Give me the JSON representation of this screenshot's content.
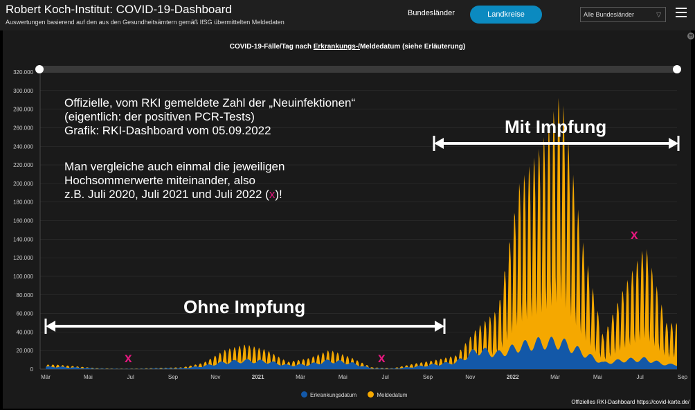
{
  "header": {
    "title": "Robert Koch-Institut: COVID-19-Dashboard",
    "subtitle": "Auswertungen basierend auf den aus den Gesundheitsämtern gemäß IfSG übermittelten Meldedaten",
    "tab_states": "Bundesländer",
    "tab_districts": "Landkreise",
    "region_select": "Alle Bundesländer"
  },
  "chart_title": {
    "prefix": "COVID-19-Fälle/Tag nach ",
    "link": "Erkrankungs-/",
    "suffix": "Meldedatum (siehe Erläuterung)"
  },
  "annotations": {
    "line1": "Offizielle, vom RKI gemeldete Zahl der „Neuinfektionen“",
    "line2": "(eigentlich: der positiven PCR-Tests)",
    "line3": "Grafik: RKI-Dashboard vom 05.09.2022",
    "line4": "Man vergleiche auch einmal die jeweiligen",
    "line5": "Hochsommerwerte miteinander, also",
    "line6_pre": "z.B. Juli 2020, Juli 2021 und Juli 2022 (",
    "x_mark": "x",
    "line6_post": ")!",
    "with_vaccination": "Mit Impfung",
    "without_vaccination": "Ohne Impfung"
  },
  "credit": "Offizielles RKI-Dashboard https://covid-karte.de/",
  "colors": {
    "background": "#1a1a1a",
    "header": "#1f1f1f",
    "accent": "#0b8ac0",
    "reporting_date": "#f5a800",
    "onset_date": "#1358a8",
    "annotation_mark": "#e5187f"
  },
  "chart_data": {
    "type": "bar",
    "title": "COVID-19-Fälle/Tag nach Erkrankungs-/Meldedatum (siehe Erläuterung)",
    "y_ticks": [
      "0",
      "20.000",
      "40.000",
      "60.000",
      "80.000",
      "100.000",
      "120.000",
      "140.000",
      "160.000",
      "180.000",
      "200.000",
      "220.000",
      "240.000",
      "260.000",
      "280.000",
      "300.000",
      "320.000"
    ],
    "ylim": [
      0,
      320000
    ],
    "x_ticks": [
      "Mär",
      "Mai",
      "Jul",
      "Sep",
      "Nov",
      "2021",
      "Mär",
      "Mai",
      "Jul",
      "Sep",
      "Nov",
      "2022",
      "Mär",
      "Mai",
      "Jul",
      "Sep"
    ],
    "x_range": [
      "2020-03",
      "2022-09"
    ],
    "grid": true,
    "legend_position": "bottom",
    "series": [
      {
        "name": "Erkrankungsdatum",
        "color": "#1358a8"
      },
      {
        "name": "Meldedatum",
        "color": "#f5a800"
      }
    ],
    "monthly_months": [
      "2020-03",
      "2020-04",
      "2020-05",
      "2020-06",
      "2020-07",
      "2020-08",
      "2020-09",
      "2020-10",
      "2020-11",
      "2020-12",
      "2021-01",
      "2021-02",
      "2021-03",
      "2021-04",
      "2021-05",
      "2021-06",
      "2021-07",
      "2021-08",
      "2021-09",
      "2021-10",
      "2021-11",
      "2021-12",
      "2022-01",
      "2022-02",
      "2022-03",
      "2022-04",
      "2022-05",
      "2022-06",
      "2022-07",
      "2022-08"
    ],
    "meldedatum_peak": [
      5000,
      3000,
      1000,
      600,
      700,
      1500,
      2000,
      7000,
      21000,
      27000,
      21000,
      8000,
      12000,
      21000,
      13000,
      2000,
      1000,
      6000,
      10000,
      15000,
      45000,
      65000,
      200000,
      240000,
      300000,
      140000,
      35000,
      90000,
      135000,
      50000
    ],
    "erkrankungsdatum_typical": [
      3000,
      2000,
      600,
      400,
      400,
      900,
      1200,
      4000,
      9000,
      11000,
      10000,
      5000,
      6000,
      11000,
      8000,
      1000,
      600,
      3000,
      6000,
      9000,
      25000,
      20000,
      30000,
      35000,
      35000,
      22000,
      8000,
      12000,
      13000,
      6000
    ]
  }
}
